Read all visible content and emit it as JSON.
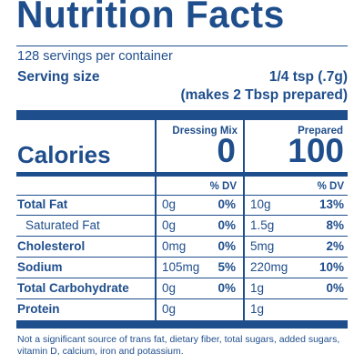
{
  "title": "Nutrition Facts",
  "servings_per_container": "128 servings per container",
  "serving_size_label": "Serving size",
  "serving_size_value": "1/4 tsp (.7g)",
  "serving_size_prepared": "(makes 2 Tbsp prepared)",
  "columns": {
    "col1_header": "Dressing Mix",
    "col2_header": "Prepared"
  },
  "calories": {
    "label": "Calories",
    "col1": "0",
    "col2": "100"
  },
  "dv_header": "% DV",
  "rows": [
    {
      "label": "Total Fat",
      "col1_amt": "0g",
      "col1_pct": "0%",
      "col2_amt": "10g",
      "col2_pct": "13%"
    },
    {
      "label": "Saturated Fat",
      "col1_amt": "0g",
      "col1_pct": "0%",
      "col2_amt": "1.5g",
      "col2_pct": "8%"
    },
    {
      "label": "Cholesterol",
      "col1_amt": "0mg",
      "col1_pct": "0%",
      "col2_amt": "5mg",
      "col2_pct": "2%"
    },
    {
      "label": "Sodium",
      "col1_amt": "105mg",
      "col1_pct": "5%",
      "col2_amt": "220mg",
      "col2_pct": "10%"
    },
    {
      "label": "Total Carbohydrate",
      "col1_amt": "0g",
      "col1_pct": "0%",
      "col2_amt": "1g",
      "col2_pct": "0%"
    },
    {
      "label": "Protein",
      "col1_amt": "0g",
      "col1_pct": "",
      "col2_amt": "1g",
      "col2_pct": ""
    }
  ],
  "footnote": "Not a significant source of trans fat, dietary fiber, total sugars, added sugars, vitamin D, calcium, iron and potassium.",
  "colors": {
    "ink": "#1f4e8c",
    "background": "#ffffff"
  }
}
